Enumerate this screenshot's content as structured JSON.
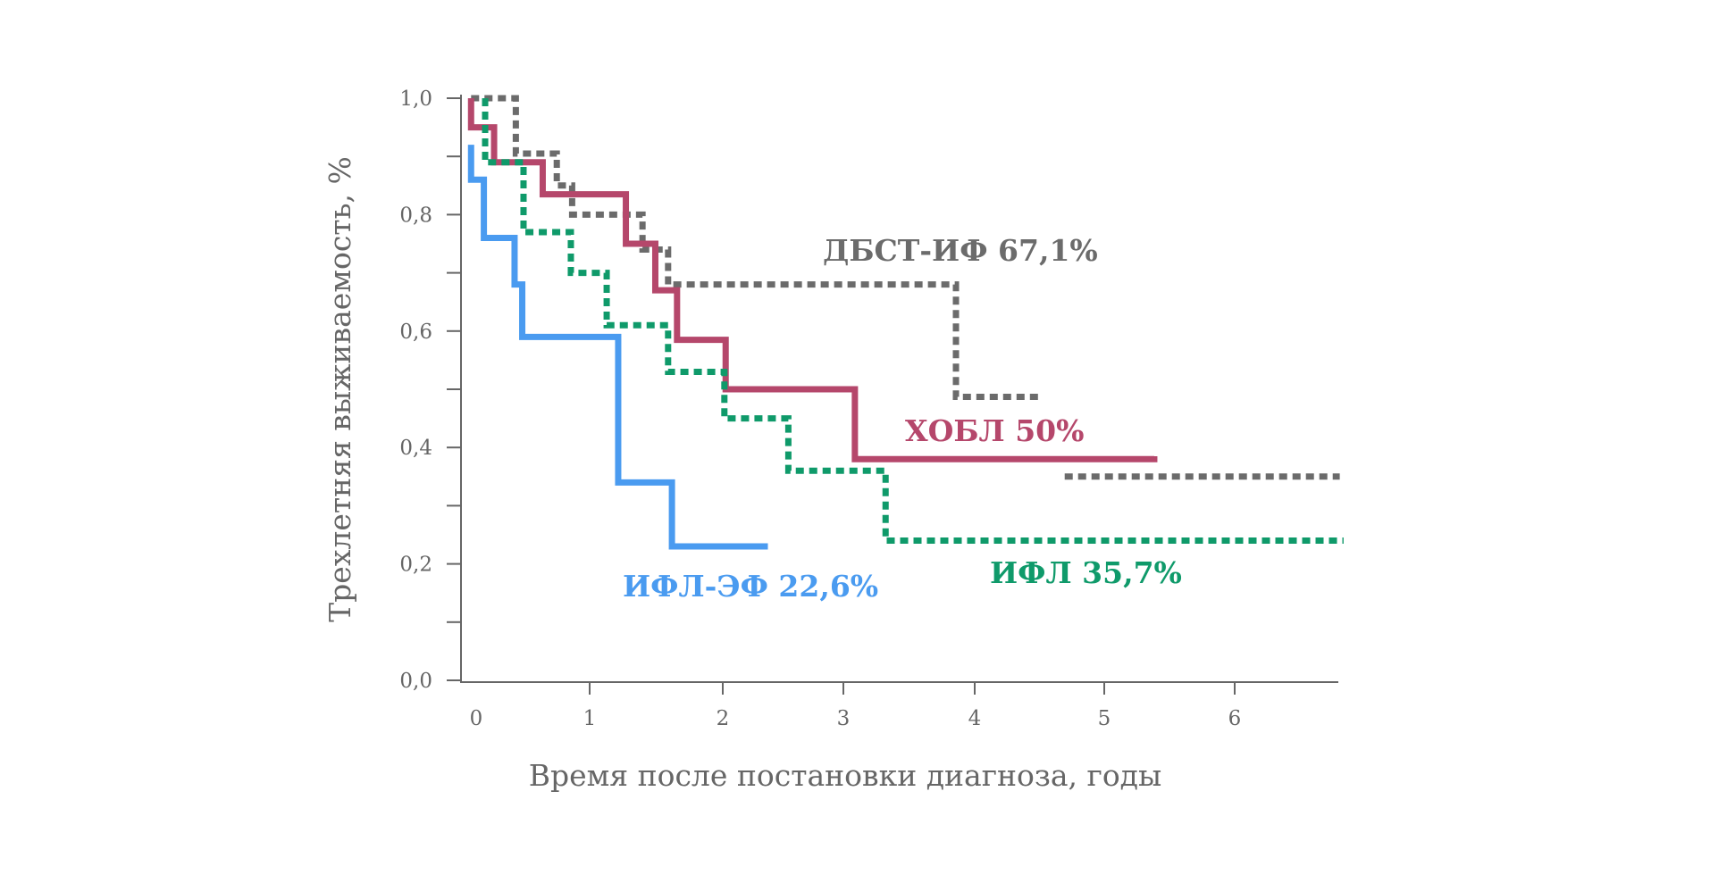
{
  "chart_data": {
    "type": "line",
    "subtype": "kaplan-meier step",
    "xlabel": "Время после постановки диагноза, годы",
    "ylabel": "Трехлетняя выживаемость, %",
    "xlim": [
      0,
      6.8
    ],
    "ylim": [
      0,
      1.0
    ],
    "x_ticks": [
      "0",
      "1",
      "2",
      "3",
      "4",
      "5",
      "6"
    ],
    "y_ticks": [
      "0,0",
      "0,2",
      "0,4",
      "0,6",
      "0,8",
      "1,0"
    ],
    "grid": false,
    "series": [
      {
        "name": "ДБСТ-ИФ",
        "label": "ДБСТ-ИФ 67,1%",
        "color": "#6b6b6b",
        "style": "dotted",
        "points": [
          [
            -0.04,
            1.0
          ],
          [
            0.31,
            0.905
          ],
          [
            0.63,
            0.85
          ],
          [
            0.75,
            0.8
          ],
          [
            1.3,
            0.74
          ],
          [
            1.5,
            0.68
          ],
          [
            3.75,
            0.487
          ],
          [
            4.4,
            0.487
          ]
        ],
        "points2": [
          [
            4.6,
            0.35
          ],
          [
            6.75,
            0.35
          ]
        ]
      },
      {
        "name": "ХОБЛ",
        "label": "ХОБЛ 50%",
        "color": "#b5476b",
        "style": "solid",
        "points": [
          [
            -0.04,
            1.0
          ],
          [
            -0.04,
            0.95
          ],
          [
            0.14,
            0.89
          ],
          [
            0.52,
            0.835
          ],
          [
            1.17,
            0.75
          ],
          [
            1.4,
            0.67
          ],
          [
            1.57,
            0.585
          ],
          [
            1.95,
            0.5
          ],
          [
            2.96,
            0.38
          ],
          [
            5.3,
            0.385
          ]
        ]
      },
      {
        "name": "ИФЛ",
        "label": "ИФЛ 35,7%",
        "color": "#0f9a6a",
        "style": "dotted",
        "points": [
          [
            0.07,
            1.0
          ],
          [
            0.07,
            0.89
          ],
          [
            0.37,
            0.77
          ],
          [
            0.74,
            0.7
          ],
          [
            1.02,
            0.61
          ],
          [
            1.5,
            0.53
          ],
          [
            1.94,
            0.45
          ],
          [
            2.44,
            0.36
          ],
          [
            3.2,
            0.24
          ],
          [
            6.78,
            0.24
          ]
        ]
      },
      {
        "name": "ИФЛ-ЭФ",
        "label": "ИФЛ-ЭФ 22,6%",
        "color": "#4a9bf0",
        "style": "solid",
        "points": [
          [
            -0.04,
            0.92
          ],
          [
            -0.04,
            0.86
          ],
          [
            0.06,
            0.76
          ],
          [
            0.3,
            0.68
          ],
          [
            0.36,
            0.59
          ],
          [
            1.11,
            0.34
          ],
          [
            1.53,
            0.23
          ],
          [
            2.28,
            0.23
          ]
        ]
      }
    ]
  }
}
